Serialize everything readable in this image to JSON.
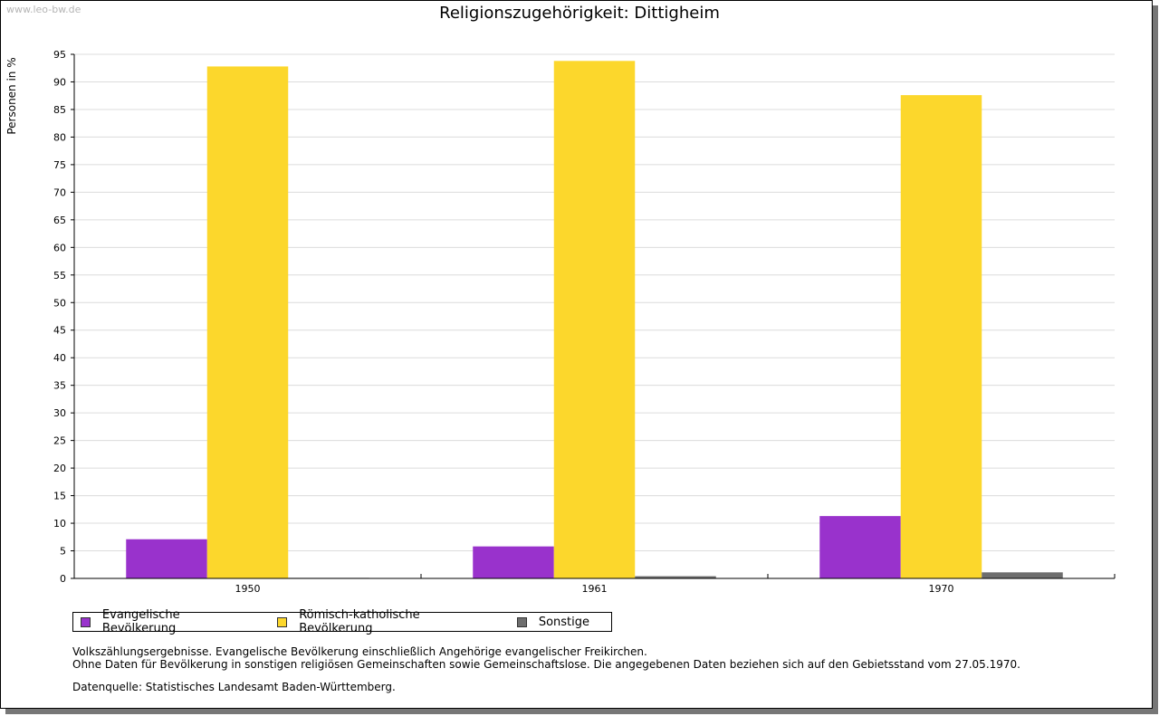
{
  "watermark": "www.leo-bw.de",
  "chart_data": {
    "type": "bar",
    "title": "Religionszugehörigkeit: Dittigheim",
    "xlabel": "",
    "ylabel": "Personen in %",
    "ylim": [
      0,
      95
    ],
    "ytick_step": 5,
    "grid": true,
    "categories": [
      "1950",
      "1961",
      "1970"
    ],
    "series": [
      {
        "name": "Evangelische Bevölkerung",
        "color": "#9932cc",
        "values": [
          7.1,
          5.8,
          11.3
        ]
      },
      {
        "name": "Römisch-katholische Bevölkerung",
        "color": "#fcd72c",
        "values": [
          92.8,
          93.8,
          87.6
        ]
      },
      {
        "name": "Sonstige",
        "color": "#6e6e6e",
        "values": [
          0.1,
          0.4,
          1.1
        ]
      }
    ],
    "legend_position": "bottom-left"
  },
  "notes": {
    "line1": "Volkszählungsergebnisse. Evangelische Bevölkerung einschließlich Angehörige evangelischer Freikirchen.",
    "line2": "Ohne Daten für Bevölkerung in sonstigen religiösen Gemeinschaften sowie Gemeinschaftslose. Die angegebenen Daten beziehen sich auf den Gebietsstand vom 27.05.1970.",
    "source": "Datenquelle: Statistisches Landesamt Baden-Württemberg."
  }
}
